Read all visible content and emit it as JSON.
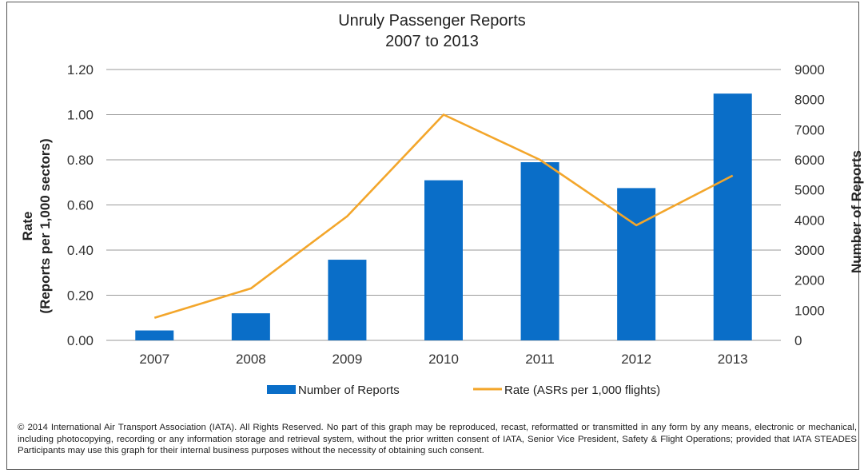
{
  "chart_data": {
    "type": "bar+line",
    "title": "Unruly Passenger Reports",
    "subtitle": "2007 to 2013",
    "categories": [
      "2007",
      "2008",
      "2009",
      "2010",
      "2011",
      "2012",
      "2013"
    ],
    "series": [
      {
        "name": "Number of Reports",
        "type": "bar",
        "axis": "right",
        "color": "#0A6EC8",
        "values": [
          330,
          900,
          2680,
          5320,
          5920,
          5060,
          8200
        ]
      },
      {
        "name": "Rate (ASRs per 1,000 flights)",
        "type": "line",
        "axis": "left",
        "color": "#F3A62B",
        "values": [
          0.1,
          0.23,
          0.55,
          1.0,
          0.8,
          0.51,
          0.73
        ]
      }
    ],
    "left_axis": {
      "label_line1": "Rate",
      "label_line2": "(Reports per 1,000 sectors)",
      "ylim": [
        0,
        1.2
      ],
      "ticks": [
        "0.00",
        "0.20",
        "0.40",
        "0.60",
        "0.80",
        "1.00",
        "1.20"
      ]
    },
    "right_axis": {
      "label": "Number of Reports",
      "ylim": [
        0,
        9000
      ],
      "ticks": [
        "0",
        "1000",
        "2000",
        "3000",
        "4000",
        "5000",
        "6000",
        "7000",
        "8000",
        "9000"
      ]
    },
    "grid": true,
    "legend": "bottom"
  },
  "footnote": "© 2014 International Air Transport Association (IATA). All Rights Reserved. No part of this graph may be reproduced, recast, reformatted or transmitted in any form by any means, electronic or mechanical, including photocopying, recording or any information storage and retrieval system, without the prior written consent of IATA, Senior Vice President, Safety & Flight Operations; provided that IATA STEADES Participants may use this graph for their internal business purposes without the necessity of obtaining such consent."
}
